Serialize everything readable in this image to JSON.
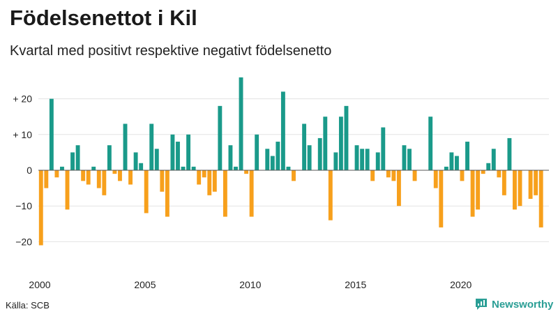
{
  "title": "Födelsenettot i Kil",
  "subtitle": "Kvartal med positivt respektive negativt födelsenetto",
  "source": "Källa: SCB",
  "brand": "Newsworthy",
  "colors": {
    "positive": "#1a9a8a",
    "negative": "#f7a01c",
    "grid": "#e3e3e3",
    "zero": "#555555"
  },
  "chart_data": {
    "type": "bar",
    "title": "Födelsenettot i Kil",
    "subtitle": "Kvartal med positivt respektive negativt födelsenetto",
    "xlabel": "",
    "ylabel": "",
    "ylim": [
      -25,
      27
    ],
    "yticks": [
      {
        "value": 20,
        "label": "+ 20"
      },
      {
        "value": 10,
        "label": "+ 10"
      },
      {
        "value": 0,
        "label": "0"
      },
      {
        "value": -10,
        "label": "−10"
      },
      {
        "value": -20,
        "label": "−20"
      }
    ],
    "xticks": [
      {
        "year": 2000,
        "label": "2000"
      },
      {
        "year": 2005,
        "label": "2005"
      },
      {
        "year": 2010,
        "label": "2010"
      },
      {
        "year": 2015,
        "label": "2015"
      },
      {
        "year": 2020,
        "label": "2020"
      }
    ],
    "start_year": 2000,
    "categories": [
      "2000 K1",
      "2000 K2",
      "2000 K3",
      "2000 K4",
      "2001 K1",
      "2001 K2",
      "2001 K3",
      "2001 K4",
      "2002 K1",
      "2002 K2",
      "2002 K3",
      "2002 K4",
      "2003 K1",
      "2003 K2",
      "2003 K3",
      "2003 K4",
      "2004 K1",
      "2004 K2",
      "2004 K3",
      "2004 K4",
      "2005 K1",
      "2005 K2",
      "2005 K3",
      "2005 K4",
      "2006 K1",
      "2006 K2",
      "2006 K3",
      "2006 K4",
      "2007 K1",
      "2007 K2",
      "2007 K3",
      "2007 K4",
      "2008 K1",
      "2008 K2",
      "2008 K3",
      "2008 K4",
      "2009 K1",
      "2009 K2",
      "2009 K3",
      "2009 K4",
      "2010 K1",
      "2010 K2",
      "2010 K3",
      "2010 K4",
      "2011 K1",
      "2011 K2",
      "2011 K3",
      "2011 K4",
      "2012 K1",
      "2012 K2",
      "2012 K3",
      "2012 K4",
      "2013 K1",
      "2013 K2",
      "2013 K3",
      "2013 K4",
      "2014 K1",
      "2014 K2",
      "2014 K3",
      "2014 K4",
      "2015 K1",
      "2015 K2",
      "2015 K3",
      "2015 K4",
      "2016 K1",
      "2016 K2",
      "2016 K3",
      "2016 K4",
      "2017 K1",
      "2017 K2",
      "2017 K3",
      "2017 K4",
      "2018 K1",
      "2018 K2",
      "2018 K3",
      "2018 K4",
      "2019 K1",
      "2019 K2",
      "2019 K3",
      "2019 K4",
      "2020 K1",
      "2020 K2",
      "2020 K3",
      "2020 K4",
      "2021 K1",
      "2021 K2",
      "2021 K3",
      "2021 K4",
      "2022 K1",
      "2022 K2",
      "2022 K3",
      "2022 K4",
      "2023 K1",
      "2023 K2",
      "2023 K3",
      "2023 K4",
      "2024 K1"
    ],
    "values": [
      -21,
      -5,
      20,
      -2,
      1,
      -11,
      5,
      7,
      -3,
      -4,
      1,
      -5,
      -7,
      7,
      -1,
      -3,
      13,
      -4,
      5,
      2,
      -12,
      13,
      6,
      -6,
      -13,
      10,
      8,
      1,
      10,
      1,
      -4,
      -2,
      -7,
      -6,
      18,
      -13,
      7,
      1,
      26,
      -1,
      -13,
      10,
      0,
      6,
      4,
      8,
      22,
      1,
      -3,
      0,
      13,
      7,
      0,
      9,
      15,
      -14,
      5,
      15,
      18,
      0,
      7,
      6,
      6,
      -3,
      5,
      12,
      -2,
      -3,
      -10,
      7,
      6,
      -3,
      0,
      0,
      15,
      -5,
      -16,
      1,
      5,
      4,
      -3,
      8,
      -13,
      -11,
      -1,
      2,
      6,
      -2,
      -7,
      9,
      -11,
      -10,
      0,
      -8,
      -7,
      -16,
      0
    ]
  }
}
